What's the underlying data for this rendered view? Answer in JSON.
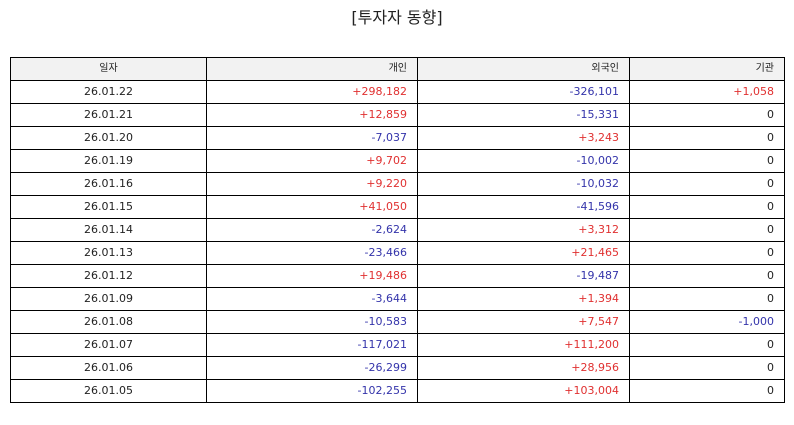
{
  "title": "[투자자 동향]",
  "table": {
    "headers": [
      "일자",
      "개인",
      "외국인",
      "기관"
    ],
    "rows": [
      [
        "26.01.22",
        "+298,182",
        "-326,101",
        "+1,058"
      ],
      [
        "26.01.21",
        "+12,859",
        "-15,331",
        "0"
      ],
      [
        "26.01.20",
        "-7,037",
        "+3,243",
        "0"
      ],
      [
        "26.01.19",
        "+9,702",
        "-10,002",
        "0"
      ],
      [
        "26.01.16",
        "+9,220",
        "-10,032",
        "0"
      ],
      [
        "26.01.15",
        "+41,050",
        "-41,596",
        "0"
      ],
      [
        "26.01.14",
        "-2,624",
        "+3,312",
        "0"
      ],
      [
        "26.01.13",
        "-23,466",
        "+21,465",
        "0"
      ],
      [
        "26.01.12",
        "+19,486",
        "-19,487",
        "0"
      ],
      [
        "26.01.09",
        "-3,644",
        "+1,394",
        "0"
      ],
      [
        "26.01.08",
        "-10,583",
        "+7,547",
        "-1,000"
      ],
      [
        "26.01.07",
        "-117,021",
        "+111,200",
        "0"
      ],
      [
        "26.01.06",
        "-26,299",
        "+28,956",
        "0"
      ],
      [
        "26.01.05",
        "-102,255",
        "+103,004",
        "0"
      ]
    ]
  },
  "colors": {
    "positive": "#e03030",
    "negative": "#3333aa",
    "neutral": "#222222",
    "header_bg": "#f2f2f2"
  }
}
